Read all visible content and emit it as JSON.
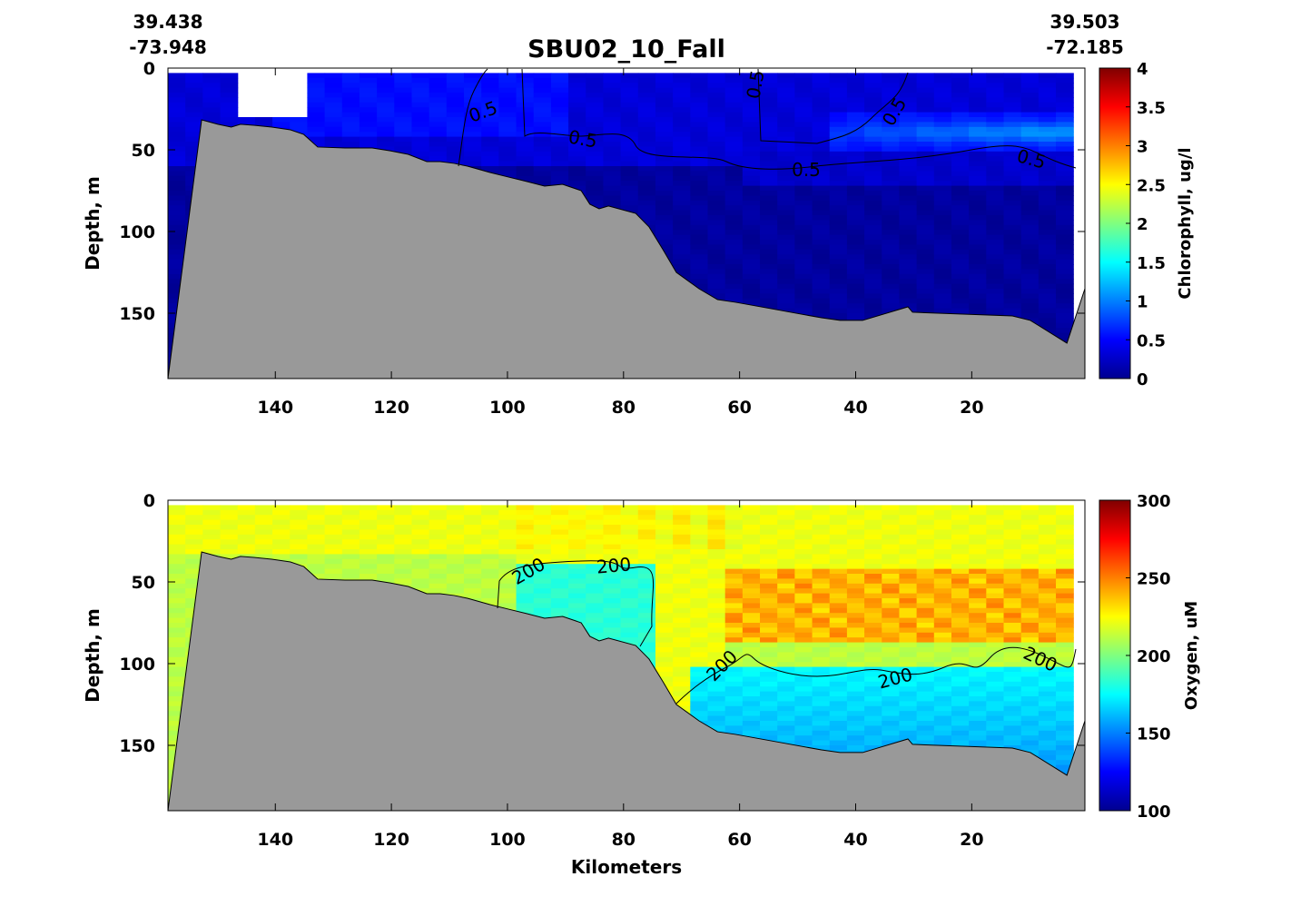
{
  "title": "SBU02_10_Fall",
  "endpoints": {
    "left": {
      "lat": "39.438",
      "lon": "-73.948"
    },
    "right": {
      "lat": "39.503",
      "lon": "-72.185"
    }
  },
  "chart_data": [
    {
      "type": "heatmap",
      "subtype": "section-contour",
      "title": "SBU02_10_Fall",
      "xlabel": "",
      "ylabel": "Depth, m",
      "xlim": [
        158.5,
        0.5
      ],
      "ylim": [
        0,
        190
      ],
      "x_reversed": true,
      "y_reversed": true,
      "xticks": [
        "140",
        "120",
        "100",
        "80",
        "60",
        "40",
        "20"
      ],
      "yticks": [
        "0",
        "50",
        "100",
        "150"
      ],
      "colormap": "jet",
      "colorbar": {
        "label": "Chlorophyll, ug/l",
        "clim": [
          0,
          4
        ],
        "ticks": [
          "0",
          "0.5",
          "1",
          "1.5",
          "2",
          "2.5",
          "3",
          "3.5",
          "4"
        ]
      },
      "contour_levels": [
        0.5
      ],
      "contour_labels": [
        "0.5",
        "0.5",
        "0.5",
        "0.5",
        "0.5",
        "0.5"
      ],
      "seabed_color": "#999999"
    },
    {
      "type": "heatmap",
      "subtype": "section-contour",
      "xlabel": "Kilometers",
      "ylabel": "Depth, m",
      "xlim": [
        158.5,
        0.5
      ],
      "ylim": [
        0,
        190
      ],
      "x_reversed": true,
      "y_reversed": true,
      "xticks": [
        "140",
        "120",
        "100",
        "80",
        "60",
        "40",
        "20"
      ],
      "yticks": [
        "0",
        "50",
        "100",
        "150"
      ],
      "colormap": "jet",
      "colorbar": {
        "label": "Oxygen, uM",
        "clim": [
          100,
          300
        ],
        "ticks": [
          "100",
          "150",
          "200",
          "250",
          "300"
        ]
      },
      "contour_levels": [
        200
      ],
      "contour_labels": [
        "200",
        "200",
        "200",
        "200",
        "200"
      ],
      "seabed_color": "#999999"
    }
  ],
  "bathymetry": {
    "km": [
      158.5,
      152.7,
      149.9,
      147.6,
      146.0,
      143.7,
      140.6,
      137.4,
      135.1,
      132.7,
      128.0,
      123.3,
      120.2,
      117.1,
      113.9,
      111.6,
      109.2,
      106.9,
      103.0,
      99.8,
      96.7,
      93.6,
      90.5,
      87.3,
      85.8,
      84.2,
      82.6,
      77.9,
      75.6,
      73.2,
      70.9,
      67.0,
      63.8,
      60.7,
      52.9,
      45.9,
      42.7,
      38.8,
      31.0,
      30.2,
      13.0,
      9.9,
      3.6,
      0.5
    ],
    "depth": [
      190,
      31.7,
      34.4,
      36.1,
      34.4,
      35.0,
      36.1,
      37.8,
      40.6,
      48.3,
      48.9,
      48.9,
      50.6,
      52.8,
      57.2,
      57.2,
      58.3,
      60.0,
      63.9,
      66.7,
      69.4,
      72.2,
      71.1,
      75.0,
      83.3,
      86.1,
      84.4,
      88.9,
      97.2,
      111.1,
      125.0,
      135.0,
      141.7,
      143.3,
      148.3,
      152.8,
      154.4,
      154.4,
      146.1,
      149.4,
      151.7,
      154.4,
      168.3,
      135.0
    ]
  }
}
